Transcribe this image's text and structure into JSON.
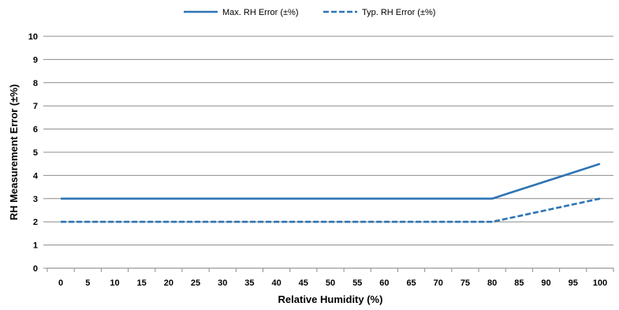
{
  "chart_data": {
    "type": "line",
    "title": "",
    "xlabel": "Relative Humidity (%)",
    "ylabel": "RH Measurement Error (±%)",
    "x": [
      0,
      5,
      10,
      15,
      20,
      25,
      30,
      35,
      40,
      45,
      50,
      55,
      60,
      65,
      70,
      75,
      80,
      85,
      90,
      95,
      100
    ],
    "xlim": [
      -2.5,
      102.5
    ],
    "ylim": [
      0,
      10
    ],
    "yticks": [
      0,
      1,
      2,
      3,
      4,
      5,
      6,
      7,
      8,
      9,
      10
    ],
    "grid": "horizontal",
    "legend_position": "top",
    "series": [
      {
        "name": "Max. RH Error (±%)",
        "style": "solid",
        "color": "#2e74b5",
        "values": [
          3,
          3,
          3,
          3,
          3,
          3,
          3,
          3,
          3,
          3,
          3,
          3,
          3,
          3,
          3,
          3,
          3,
          3.375,
          3.75,
          4.125,
          4.5
        ]
      },
      {
        "name": "Typ. RH Error (±%)",
        "style": "dashed",
        "color": "#2e74b5",
        "values": [
          2,
          2,
          2,
          2,
          2,
          2,
          2,
          2,
          2,
          2,
          2,
          2,
          2,
          2,
          2,
          2,
          2,
          2.25,
          2.5,
          2.75,
          3
        ]
      }
    ]
  }
}
